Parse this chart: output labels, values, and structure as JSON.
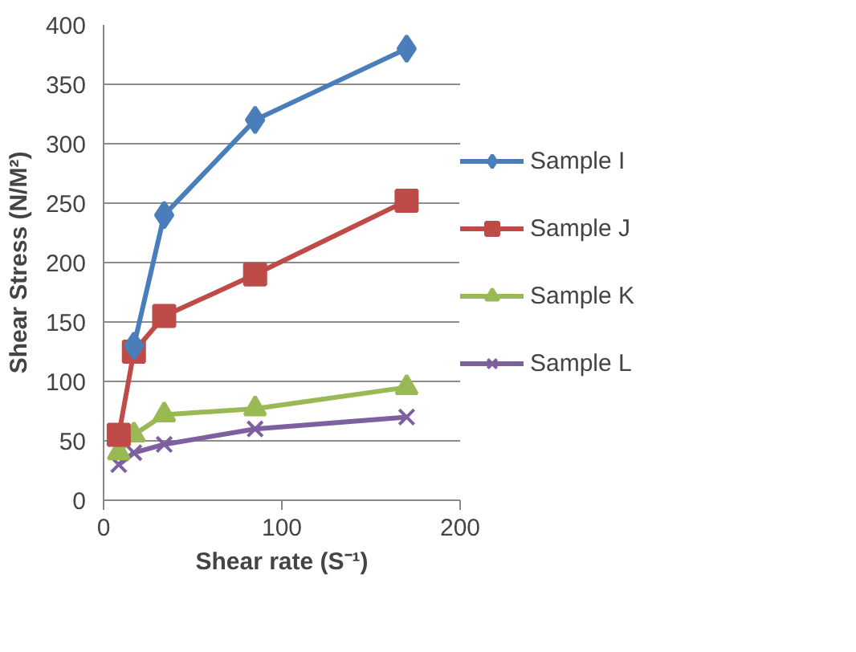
{
  "chart_data": {
    "type": "line",
    "xlabel": "Shear rate (S⁻¹)",
    "ylabel": "Shear Stress (N/M²)",
    "xlim": [
      0,
      200
    ],
    "xticks": [
      0,
      100,
      200
    ],
    "ylim": [
      0,
      400
    ],
    "yticks": [
      0,
      50,
      100,
      150,
      200,
      250,
      300,
      350,
      400
    ],
    "grid": "y",
    "legend": "right",
    "line_style": "solid",
    "series": [
      {
        "name": "Sample I",
        "color": "#4a7ebb",
        "marker": "diamond",
        "x": [
          17,
          34,
          85,
          170
        ],
        "values": [
          130,
          240,
          320,
          380
        ]
      },
      {
        "name": "Sample J",
        "color": "#be4b48",
        "marker": "square",
        "x": [
          8.5,
          17,
          34,
          85,
          170
        ],
        "values": [
          55,
          125,
          155,
          190,
          252
        ]
      },
      {
        "name": "Sample K",
        "color": "#98b954",
        "marker": "triangle",
        "x": [
          8.5,
          17,
          34,
          85,
          170
        ],
        "values": [
          40,
          55,
          72,
          77,
          95
        ]
      },
      {
        "name": "Sample L",
        "color": "#7d60a0",
        "marker": "cross",
        "x": [
          8.5,
          17,
          34,
          85,
          170
        ],
        "values": [
          30,
          40,
          47,
          60,
          70
        ]
      }
    ]
  }
}
